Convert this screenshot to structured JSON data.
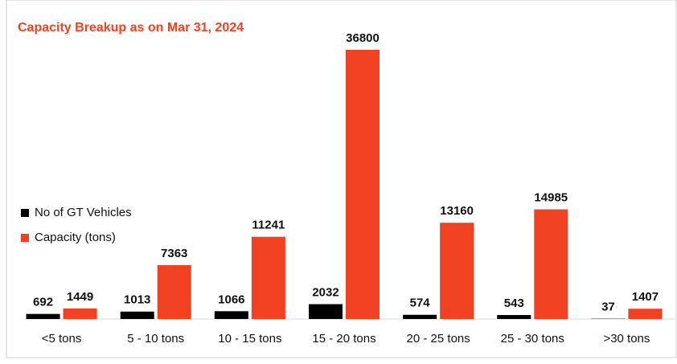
{
  "chart_data": {
    "type": "bar",
    "title": "Capacity Breakup as on Mar 31, 2024",
    "categories": [
      "<5 tons",
      "5 - 10 tons",
      "10 - 15 tons",
      "15 - 20 tons",
      "20 - 25 tons",
      "25 - 30 tons",
      ">30 tons"
    ],
    "series": [
      {
        "name": "No of GT Vehicles",
        "color": "#000000",
        "values": [
          692,
          1013,
          1066,
          2032,
          574,
          543,
          37
        ]
      },
      {
        "name": "Capacity (tons)",
        "color": "#f04223",
        "values": [
          1449,
          7363,
          11241,
          36800,
          13160,
          14985,
          1407
        ]
      }
    ],
    "legend": "left"
  }
}
